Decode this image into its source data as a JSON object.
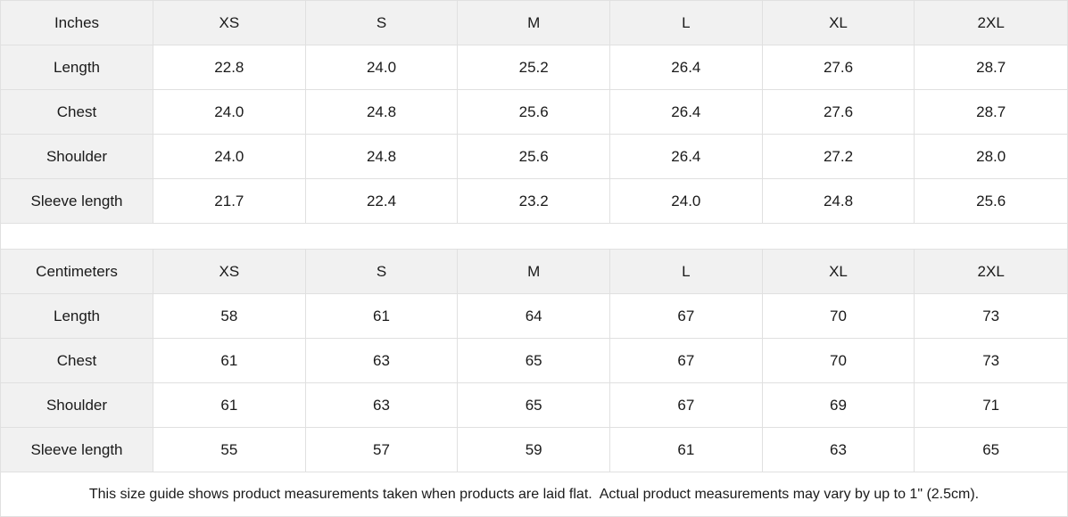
{
  "sizes": [
    "XS",
    "S",
    "M",
    "L",
    "XL",
    "2XL"
  ],
  "tables": [
    {
      "unit_label": "Inches",
      "rows": [
        {
          "label": "Length",
          "values": [
            "22.8",
            "24.0",
            "25.2",
            "26.4",
            "27.6",
            "28.7"
          ]
        },
        {
          "label": "Chest",
          "values": [
            "24.0",
            "24.8",
            "25.6",
            "26.4",
            "27.6",
            "28.7"
          ]
        },
        {
          "label": "Shoulder",
          "values": [
            "24.0",
            "24.8",
            "25.6",
            "26.4",
            "27.2",
            "28.0"
          ]
        },
        {
          "label": "Sleeve length",
          "values": [
            "21.7",
            "22.4",
            "23.2",
            "24.0",
            "24.8",
            "25.6"
          ]
        }
      ]
    },
    {
      "unit_label": "Centimeters",
      "rows": [
        {
          "label": "Length",
          "values": [
            "58",
            "61",
            "64",
            "67",
            "70",
            "73"
          ]
        },
        {
          "label": "Chest",
          "values": [
            "61",
            "63",
            "65",
            "67",
            "70",
            "73"
          ]
        },
        {
          "label": "Shoulder",
          "values": [
            "61",
            "63",
            "65",
            "67",
            "69",
            "71"
          ]
        },
        {
          "label": "Sleeve length",
          "values": [
            "55",
            "57",
            "59",
            "61",
            "63",
            "65"
          ]
        }
      ]
    }
  ],
  "footer_note": "This size guide shows product measurements taken when products are laid flat.  Actual product measurements may vary by up to 1\" (2.5cm).",
  "colors": {
    "header_bg": "#f1f1f1",
    "border": "#e0e0e0",
    "text": "#1a1a1a",
    "cell_bg": "#ffffff"
  }
}
